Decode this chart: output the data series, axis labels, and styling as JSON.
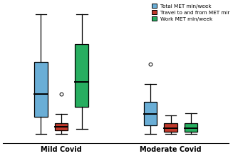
{
  "mild_covid": {
    "blue": {
      "whislo": 0,
      "q1": 1400,
      "med": 3200,
      "q3": 5800,
      "whishi": 9600,
      "fliers": []
    },
    "red": {
      "whislo": 0,
      "q1": 330,
      "med": 570,
      "q3": 900,
      "whishi": 1600,
      "fliers": [
        3200
      ]
    },
    "green": {
      "whislo": 400,
      "q1": 2200,
      "med": 4200,
      "q3": 7200,
      "whishi": 9600,
      "fliers": []
    }
  },
  "moderate_covid": {
    "blue": {
      "whislo": 0,
      "q1": 700,
      "med": 1600,
      "q3": 2600,
      "whishi": 4000,
      "fliers": [
        5600
      ]
    },
    "red": {
      "whislo": 0,
      "q1": 200,
      "med": 500,
      "q3": 900,
      "whishi": 1500,
      "fliers": []
    },
    "green": {
      "whislo": 0,
      "q1": 200,
      "med": 500,
      "q3": 900,
      "whishi": 1700,
      "fliers": []
    }
  },
  "colors": {
    "blue": "#6aaed6",
    "red": "#c0392b",
    "green": "#27ae60"
  },
  "legend_labels": [
    "Total MET min/week",
    "Travel to and from MET mir",
    "Work MET min/week"
  ],
  "group_labels": [
    "Mild Covid",
    "Moderate Covid"
  ],
  "box_width": 0.18,
  "linewidth": 0.9,
  "ylim": [
    -700,
    10500
  ],
  "xlim": [
    0.2,
    3.3
  ],
  "group_centers": [
    1.0,
    2.5
  ],
  "offsets": [
    -0.28,
    0.0,
    0.28
  ]
}
